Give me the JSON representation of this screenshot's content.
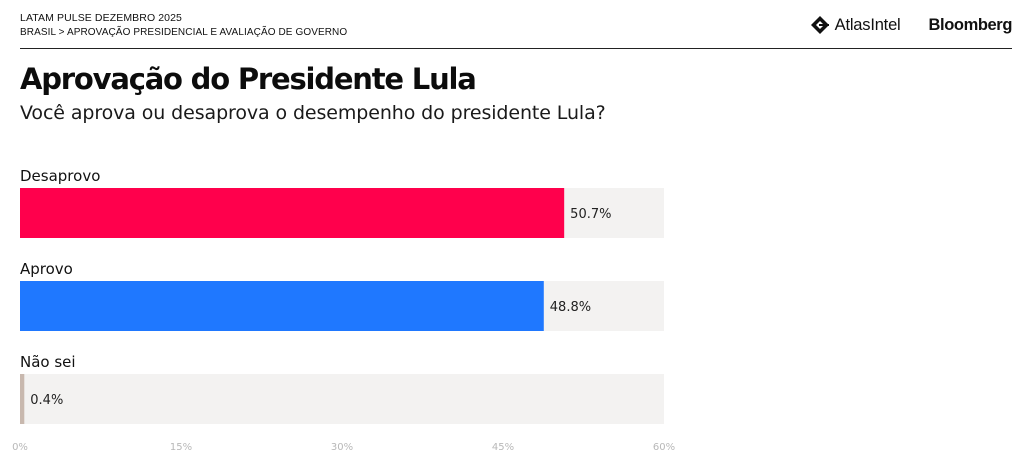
{
  "header": {
    "kicker": "LATAM PULSE DEZEMBRO 2025",
    "breadcrumb": "BRASIL > APROVAÇÃO PRESIDENCIAL E AVALIAÇÃO DE GOVERNO",
    "atlas_logo_text": "AtlasIntel",
    "bloomberg_logo_text": "Bloomberg"
  },
  "chart_data": {
    "type": "bar",
    "orientation": "horizontal",
    "title": "Aprovação do Presidente Lula",
    "subtitle": "Você aprova ou desaprova o desempenho do presidente Lula?",
    "categories": [
      "Desaprovo",
      "Aprovo",
      "Não sei"
    ],
    "values": [
      50.7,
      48.8,
      0.4
    ],
    "value_labels": [
      "50.7%",
      "48.8%",
      "0.4%"
    ],
    "colors": [
      "#ff004c",
      "#1f78ff",
      "#c8b8ae"
    ],
    "xlim": [
      0,
      60
    ],
    "xticks": [
      0,
      15,
      30,
      45,
      60
    ],
    "xtick_labels": [
      "0%",
      "15%",
      "30%",
      "45%",
      "60%"
    ],
    "track_color": "#f3f2f1"
  }
}
